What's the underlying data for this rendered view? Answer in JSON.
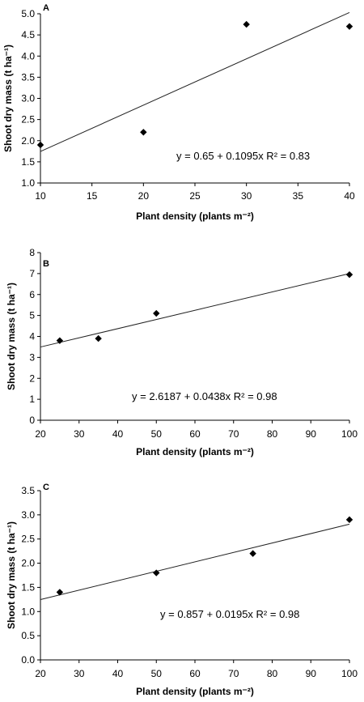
{
  "chart_data": [
    {
      "type": "scatter",
      "panel_label": "A",
      "xlabel": "Plant density (plants m⁻²)",
      "ylabel": "Shoot dry mass (t ha⁻¹)",
      "xlim": [
        10,
        40
      ],
      "ylim": [
        1.0,
        5.0
      ],
      "xticks": [
        10,
        15,
        20,
        25,
        30,
        35,
        40
      ],
      "xtick_labels": [
        "10",
        "15",
        "20",
        "25",
        "30",
        "35",
        "40"
      ],
      "yticks": [
        1.0,
        1.5,
        2.0,
        2.5,
        3.0,
        3.5,
        4.0,
        4.5,
        5.0
      ],
      "ytick_labels": [
        "1.0",
        "1.5",
        "2.0",
        "2.5",
        "3.0",
        "3.5",
        "4.0",
        "4.5",
        "5.0"
      ],
      "points": [
        {
          "x": 10,
          "y": 1.9
        },
        {
          "x": 20,
          "y": 2.2
        },
        {
          "x": 30,
          "y": 4.75
        },
        {
          "x": 40,
          "y": 4.7
        }
      ],
      "fit": {
        "intercept": 0.65,
        "slope": 0.1095
      },
      "equation": "y = 0.65 + 0.1095x  R² = 0.83",
      "grid": false
    },
    {
      "type": "scatter",
      "panel_label": "B",
      "xlabel": "Plant density (plants m⁻²)",
      "ylabel": "Shoot dry mass (t ha⁻¹)",
      "xlim": [
        20,
        100
      ],
      "ylim": [
        0,
        8
      ],
      "xticks": [
        20,
        30,
        40,
        50,
        60,
        70,
        80,
        90,
        100
      ],
      "xtick_labels": [
        "20",
        "30",
        "40",
        "50",
        "60",
        "70",
        "80",
        "90",
        "100"
      ],
      "yticks": [
        0,
        1,
        2,
        3,
        4,
        5,
        6,
        7,
        8
      ],
      "ytick_labels": [
        "0",
        "1",
        "2",
        "3",
        "4",
        "5",
        "6",
        "7",
        "8"
      ],
      "points": [
        {
          "x": 25,
          "y": 3.8
        },
        {
          "x": 35,
          "y": 3.9
        },
        {
          "x": 50,
          "y": 5.1
        },
        {
          "x": 100,
          "y": 6.95
        }
      ],
      "fit": {
        "intercept": 2.6187,
        "slope": 0.0438
      },
      "equation": "y = 2.6187 + 0.0438x   R² = 0.98",
      "grid": false
    },
    {
      "type": "scatter",
      "panel_label": "C",
      "xlabel": "Plant density (plants m⁻²)",
      "ylabel": "Shoot dry mass (t ha⁻¹)",
      "xlim": [
        20,
        100
      ],
      "ylim": [
        0,
        3.5
      ],
      "xticks": [
        20,
        30,
        40,
        50,
        60,
        70,
        80,
        90,
        100
      ],
      "xtick_labels": [
        "20",
        "30",
        "40",
        "50",
        "60",
        "70",
        "80",
        "90",
        "100"
      ],
      "yticks": [
        0,
        0.5,
        1.0,
        1.5,
        2.0,
        2.5,
        3.0,
        3.5
      ],
      "ytick_labels": [
        "0.0",
        "0.5",
        "1.0",
        "1.5",
        "2.0",
        "2.5",
        "3.0",
        "3.5"
      ],
      "points": [
        {
          "x": 25,
          "y": 1.4
        },
        {
          "x": 50,
          "y": 1.8
        },
        {
          "x": 75,
          "y": 2.2
        },
        {
          "x": 100,
          "y": 2.9
        }
      ],
      "fit": {
        "intercept": 0.857,
        "slope": 0.0195
      },
      "equation": "y = 0.857 + 0.0195x  R² = 0.98",
      "grid": false
    }
  ]
}
